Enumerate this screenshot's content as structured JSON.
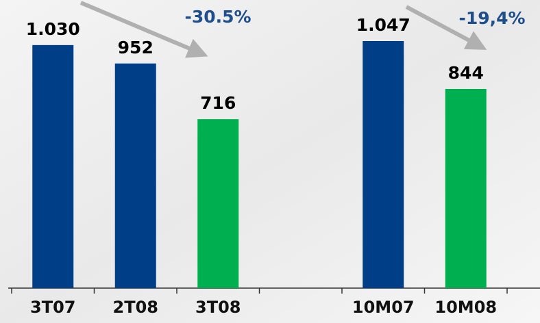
{
  "chart_data": {
    "type": "bar",
    "categories": [
      "3T07",
      "2T08",
      "3T08",
      null,
      "10M07",
      "10M08"
    ],
    "values": [
      1030,
      952,
      716,
      null,
      1047,
      844
    ],
    "value_labels": [
      "1.030",
      "952",
      "716",
      null,
      "1.047",
      "844"
    ],
    "colors": [
      "#003f87",
      "#003f87",
      "#00b050",
      null,
      "#003f87",
      "#00b050"
    ],
    "annotations": [
      "-30.5%",
      "-19,4%"
    ]
  }
}
